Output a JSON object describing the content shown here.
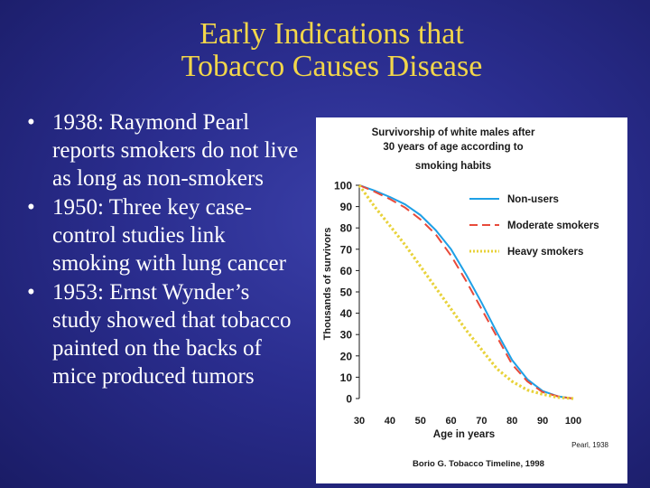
{
  "slide": {
    "title_lines": [
      "Early Indications that",
      "Tobacco Causes Disease"
    ],
    "bullets": [
      {
        "lines": [
          "1938: Raymond Pearl",
          "reports smokers do not live",
          "as long as non-smokers"
        ]
      },
      {
        "lines": [
          "1950: Three key case-",
          "control studies link",
          "smoking with lung cancer"
        ]
      },
      {
        "lines": [
          "1953: Ernst Wynder’s",
          "study showed that tobacco",
          "painted on the backs of",
          "mice produced tumors"
        ]
      }
    ],
    "colors": {
      "title": "#f2d64a",
      "text": "#ffffff",
      "background": "#2a2d8e"
    }
  },
  "chart_data": {
    "type": "line",
    "title_lines": [
      "Survivorship of white males after",
      "30 years of age according to",
      "smoking habits"
    ],
    "xlabel": "Age in years",
    "ylabel": "Thousands of survivors",
    "xlim": [
      30,
      100
    ],
    "ylim": [
      0,
      100
    ],
    "xticks": [
      30,
      40,
      50,
      60,
      70,
      80,
      90,
      100
    ],
    "yticks": [
      0,
      10,
      20,
      30,
      40,
      50,
      60,
      70,
      80,
      90,
      100
    ],
    "legend_position": "top-right",
    "series": [
      {
        "name": "Non-users",
        "style": "solid",
        "color": "#1ea0e6",
        "x": [
          30,
          35,
          40,
          45,
          50,
          55,
          60,
          65,
          70,
          75,
          80,
          85,
          90,
          95,
          100
        ],
        "y": [
          100,
          97.5,
          94.5,
          91,
          86,
          79,
          70,
          58,
          45,
          31,
          18,
          9,
          3.5,
          1,
          0
        ]
      },
      {
        "name": "Moderate smokers",
        "style": "dashed",
        "color": "#e84a3a",
        "x": [
          30,
          35,
          40,
          45,
          50,
          55,
          60,
          65,
          70,
          75,
          80,
          85,
          90,
          95,
          100
        ],
        "y": [
          100,
          97,
          93.5,
          89.5,
          84,
          77,
          67,
          55,
          42,
          29,
          16,
          8,
          3,
          1,
          0
        ]
      },
      {
        "name": "Heavy smokers",
        "style": "dotted",
        "color": "#e8d23a",
        "x": [
          30,
          35,
          40,
          45,
          50,
          55,
          60,
          65,
          70,
          75,
          80,
          85,
          90,
          95,
          100
        ],
        "y": [
          100,
          90,
          81,
          72,
          62,
          52,
          42,
          32,
          23,
          14,
          8,
          4,
          2,
          0.5,
          0
        ]
      }
    ],
    "source_note": "Pearl, 1938",
    "footer": "Borio G. Tobacco Timeline, 1998"
  }
}
